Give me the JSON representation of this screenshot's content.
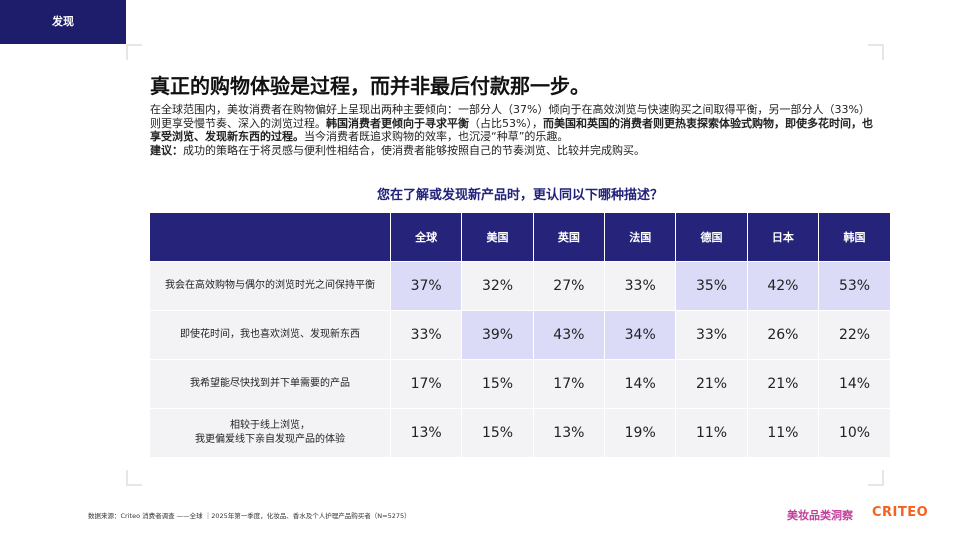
{
  "section_tab": "发现",
  "title": "真正的购物体验是过程，而并非最后付款那一步。",
  "paragraphs": [
    {
      "segments": [
        {
          "text": "在全球范围内，美妆消费者在购物偏好上呈现出两种主要倾向：一部分人（37%）倾向于在高效浏览与快速购买之间取得平衡，另一部分人（33%）则更享受慢节奏、深入的浏览过程。",
          "bold": false
        },
        {
          "text": "韩国消费者更倾向于寻求平衡",
          "bold": true
        },
        {
          "text": "（占比53%），",
          "bold": false
        },
        {
          "text": "而美国和英国的消费者则更热衷探索体验式购物，即使多花时间，也享受浏览、发现新东西的过程。",
          "bold": true
        },
        {
          "text": "当今消费者既追求购物的效率，也沉浸“种草”的乐趣。",
          "bold": false
        }
      ]
    },
    {
      "segments": [
        {
          "text": "建议：",
          "bold": true
        },
        {
          "text": "成功的策略在于将灵感与便利性相结合，使消费者能够按照自己的节奏浏览、比较并完成购买。",
          "bold": false
        }
      ]
    }
  ],
  "question": "您在了解或发现新产品时，更认同以下哪种描述？",
  "table": {
    "columns": [
      "全球",
      "美国",
      "英国",
      "法国",
      "德国",
      "日本",
      "韩国"
    ],
    "rows": [
      {
        "label": "我会在高效购物与偶尔的浏览时光之间保持平衡",
        "cells": [
          {
            "text": "37%",
            "highlight": true
          },
          {
            "text": "32%",
            "highlight": false
          },
          {
            "text": "27%",
            "highlight": false
          },
          {
            "text": "33%",
            "highlight": false
          },
          {
            "text": "35%",
            "highlight": true
          },
          {
            "text": "42%",
            "highlight": true
          },
          {
            "text": "53%",
            "highlight": true
          }
        ]
      },
      {
        "label": "即使花时间，我也喜欢浏览、发现新东西",
        "cells": [
          {
            "text": "33%",
            "highlight": false
          },
          {
            "text": "39%",
            "highlight": true
          },
          {
            "text": "43%",
            "highlight": true
          },
          {
            "text": "34%",
            "highlight": true
          },
          {
            "text": "33%",
            "highlight": false
          },
          {
            "text": "26%",
            "highlight": false
          },
          {
            "text": "22%",
            "highlight": false
          }
        ]
      },
      {
        "label": "我希望能尽快找到并下单需要的产品",
        "cells": [
          {
            "text": "17%",
            "highlight": false
          },
          {
            "text": "15%",
            "highlight": false
          },
          {
            "text": "17%",
            "highlight": false
          },
          {
            "text": "14%",
            "highlight": false
          },
          {
            "text": "21%",
            "highlight": false
          },
          {
            "text": "21%",
            "highlight": false
          },
          {
            "text": "14%",
            "highlight": false
          }
        ]
      },
      {
        "label": "相较于线上浏览，\n我更偏爱线下亲自发现产品的体验",
        "cells": [
          {
            "text": "13%",
            "highlight": false
          },
          {
            "text": "15%",
            "highlight": false
          },
          {
            "text": "13%",
            "highlight": false
          },
          {
            "text": "19%",
            "highlight": false
          },
          {
            "text": "11%",
            "highlight": false
          },
          {
            "text": "11%",
            "highlight": false
          },
          {
            "text": "10%",
            "highlight": false
          }
        ]
      }
    ]
  },
  "footer": {
    "source": "数据来源：Criteo 消费者调查 ——全球 ｜2025年第一季度，化妆品、香水及个人护理产品购买者（N=5275）",
    "brand": "美妆品类洞察",
    "logo": "CRITEO"
  }
}
